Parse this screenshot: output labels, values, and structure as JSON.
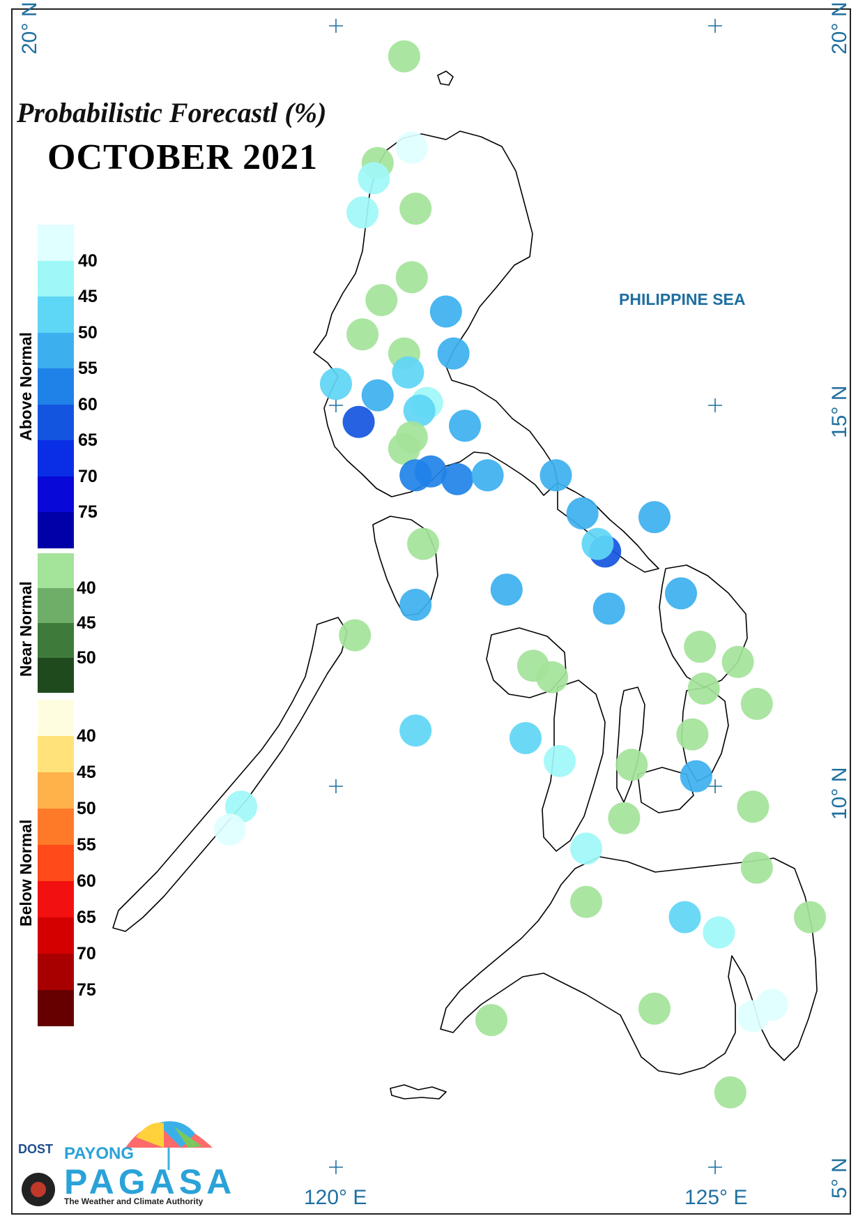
{
  "title_line1": "Probabilistic Forecastl (%)",
  "title_line2": "OCTOBER 2021",
  "sea_label": "PHILIPPINE SEA",
  "lat_labels": {
    "n20": "20° N",
    "n15": "15° N",
    "n10": "10° N",
    "n5": "5° N"
  },
  "lon_labels": {
    "e120": "120° E",
    "e125": "125° E"
  },
  "legend": {
    "above": {
      "title": "Above Normal",
      "labels": [
        "40",
        "45",
        "50",
        "55",
        "60",
        "65",
        "70",
        "75"
      ],
      "colors": [
        "#e0ffff",
        "#9ff7f7",
        "#5ed6f5",
        "#3cb0ef",
        "#1f82e8",
        "#1455e0",
        "#0a2ee6",
        "#0808d8",
        "#0000a8"
      ]
    },
    "near": {
      "title": "Near Normal",
      "labels": [
        "40",
        "45",
        "50"
      ],
      "colors": [
        "#a4e39a",
        "#6fae68",
        "#3e7a3a",
        "#1f4a1d"
      ]
    },
    "below": {
      "title": "Below Normal",
      "labels": [
        "40",
        "45",
        "50",
        "55",
        "60",
        "65",
        "70",
        "75"
      ],
      "colors": [
        "#fffde0",
        "#ffe37a",
        "#ffb14a",
        "#ff7a28",
        "#ff4a1a",
        "#f31010",
        "#d40000",
        "#a80000",
        "#660000"
      ]
    }
  },
  "logo": {
    "dost": "DOST",
    "payong": "PAYONG",
    "pagasa": "PAGASA",
    "tagline": "The Weather and Climate Authority"
  },
  "stations": [
    {
      "lon": 120.9,
      "lat": 19.6,
      "cat": "near",
      "pct": 40
    },
    {
      "lon": 121.0,
      "lat": 18.4,
      "cat": "above",
      "pct": 40
    },
    {
      "lon": 120.55,
      "lat": 18.2,
      "cat": "near",
      "pct": 40
    },
    {
      "lon": 120.5,
      "lat": 18.0,
      "cat": "above",
      "pct": 45
    },
    {
      "lon": 120.35,
      "lat": 17.55,
      "cat": "above",
      "pct": 45
    },
    {
      "lon": 121.05,
      "lat": 17.6,
      "cat": "near",
      "pct": 40
    },
    {
      "lon": 121.0,
      "lat": 16.7,
      "cat": "near",
      "pct": 40
    },
    {
      "lon": 121.45,
      "lat": 16.25,
      "cat": "above",
      "pct": 55
    },
    {
      "lon": 120.6,
      "lat": 16.4,
      "cat": "near",
      "pct": 40
    },
    {
      "lon": 120.35,
      "lat": 15.95,
      "cat": "near",
      "pct": 40
    },
    {
      "lon": 120.9,
      "lat": 15.7,
      "cat": "near",
      "pct": 40
    },
    {
      "lon": 120.95,
      "lat": 15.45,
      "cat": "above",
      "pct": 50
    },
    {
      "lon": 121.55,
      "lat": 15.7,
      "cat": "above",
      "pct": 55
    },
    {
      "lon": 120.0,
      "lat": 15.3,
      "cat": "above",
      "pct": 50
    },
    {
      "lon": 120.55,
      "lat": 15.15,
      "cat": "above",
      "pct": 55
    },
    {
      "lon": 121.2,
      "lat": 15.05,
      "cat": "above",
      "pct": 45
    },
    {
      "lon": 121.1,
      "lat": 14.95,
      "cat": "above",
      "pct": 50
    },
    {
      "lon": 120.3,
      "lat": 14.8,
      "cat": "above",
      "pct": 65
    },
    {
      "lon": 121.7,
      "lat": 14.75,
      "cat": "above",
      "pct": 55
    },
    {
      "lon": 121.0,
      "lat": 14.6,
      "cat": "near",
      "pct": 40
    },
    {
      "lon": 120.9,
      "lat": 14.45,
      "cat": "near",
      "pct": 40
    },
    {
      "lon": 121.05,
      "lat": 14.1,
      "cat": "above",
      "pct": 60
    },
    {
      "lon": 121.25,
      "lat": 14.15,
      "cat": "above",
      "pct": 60
    },
    {
      "lon": 121.6,
      "lat": 14.05,
      "cat": "above",
      "pct": 60
    },
    {
      "lon": 122.0,
      "lat": 14.1,
      "cat": "above",
      "pct": 55
    },
    {
      "lon": 122.9,
      "lat": 14.1,
      "cat": "above",
      "pct": 55
    },
    {
      "lon": 123.25,
      "lat": 13.6,
      "cat": "above",
      "pct": 55
    },
    {
      "lon": 124.2,
      "lat": 13.55,
      "cat": "above",
      "pct": 55
    },
    {
      "lon": 121.15,
      "lat": 13.2,
      "cat": "near",
      "pct": 40
    },
    {
      "lon": 123.55,
      "lat": 13.1,
      "cat": "above",
      "pct": 65
    },
    {
      "lon": 123.45,
      "lat": 13.2,
      "cat": "above",
      "pct": 50
    },
    {
      "lon": 122.25,
      "lat": 12.6,
      "cat": "above",
      "pct": 55
    },
    {
      "lon": 123.6,
      "lat": 12.35,
      "cat": "above",
      "pct": 55
    },
    {
      "lon": 124.55,
      "lat": 12.55,
      "cat": "above",
      "pct": 55
    },
    {
      "lon": 121.05,
      "lat": 12.4,
      "cat": "above",
      "pct": 55
    },
    {
      "lon": 120.25,
      "lat": 12.0,
      "cat": "near",
      "pct": 40
    },
    {
      "lon": 124.8,
      "lat": 11.85,
      "cat": "near",
      "pct": 40
    },
    {
      "lon": 125.3,
      "lat": 11.65,
      "cat": "near",
      "pct": 40
    },
    {
      "lon": 122.6,
      "lat": 11.6,
      "cat": "near",
      "pct": 40
    },
    {
      "lon": 122.85,
      "lat": 11.45,
      "cat": "near",
      "pct": 40
    },
    {
      "lon": 124.85,
      "lat": 11.3,
      "cat": "near",
      "pct": 40
    },
    {
      "lon": 125.55,
      "lat": 11.1,
      "cat": "near",
      "pct": 40
    },
    {
      "lon": 121.05,
      "lat": 10.75,
      "cat": "above",
      "pct": 50
    },
    {
      "lon": 122.5,
      "lat": 10.65,
      "cat": "above",
      "pct": 50
    },
    {
      "lon": 124.7,
      "lat": 10.7,
      "cat": "near",
      "pct": 40
    },
    {
      "lon": 122.95,
      "lat": 10.35,
      "cat": "above",
      "pct": 45
    },
    {
      "lon": 123.9,
      "lat": 10.3,
      "cat": "near",
      "pct": 40
    },
    {
      "lon": 124.75,
      "lat": 10.15,
      "cat": "above",
      "pct": 55
    },
    {
      "lon": 118.75,
      "lat": 9.75,
      "cat": "above",
      "pct": 45
    },
    {
      "lon": 118.6,
      "lat": 9.45,
      "cat": "above",
      "pct": 40
    },
    {
      "lon": 125.5,
      "lat": 9.75,
      "cat": "near",
      "pct": 40
    },
    {
      "lon": 123.8,
      "lat": 9.6,
      "cat": "near",
      "pct": 40
    },
    {
      "lon": 123.3,
      "lat": 9.2,
      "cat": "above",
      "pct": 45
    },
    {
      "lon": 125.55,
      "lat": 8.95,
      "cat": "near",
      "pct": 40
    },
    {
      "lon": 123.3,
      "lat": 8.5,
      "cat": "near",
      "pct": 40
    },
    {
      "lon": 124.6,
      "lat": 8.3,
      "cat": "above",
      "pct": 50
    },
    {
      "lon": 126.25,
      "lat": 8.3,
      "cat": "near",
      "pct": 40
    },
    {
      "lon": 125.05,
      "lat": 8.1,
      "cat": "above",
      "pct": 45
    },
    {
      "lon": 125.75,
      "lat": 7.15,
      "cat": "above",
      "pct": 40
    },
    {
      "lon": 125.5,
      "lat": 7.0,
      "cat": "above",
      "pct": 40
    },
    {
      "lon": 124.2,
      "lat": 7.1,
      "cat": "near",
      "pct": 40
    },
    {
      "lon": 122.05,
      "lat": 6.95,
      "cat": "near",
      "pct": 40
    },
    {
      "lon": 125.2,
      "lat": 6.0,
      "cat": "near",
      "pct": 40
    }
  ]
}
